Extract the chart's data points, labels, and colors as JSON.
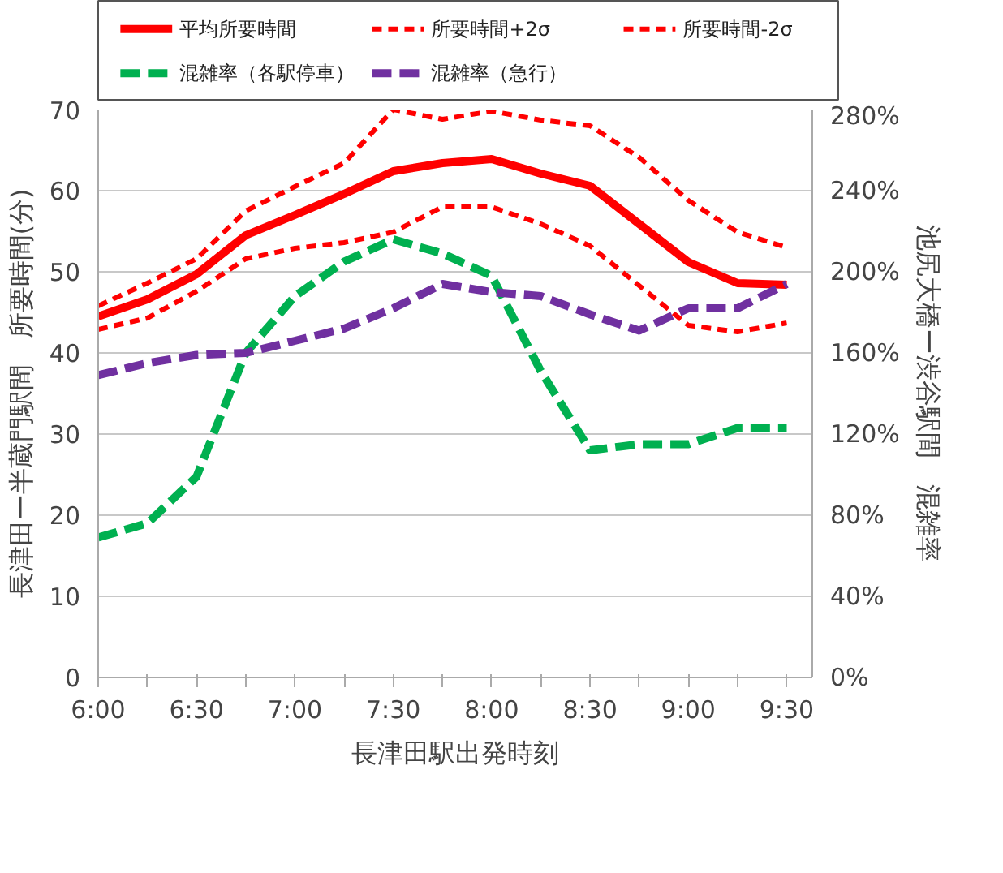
{
  "chart_data": {
    "type": "line",
    "xlabel": "長津田駅出発時刻",
    "ylabel": "長津田ー半蔵門駅間　所要時間(分)",
    "y2label": "池尻大橋ー渋谷駅間　混雑率",
    "x": [
      6,
      6.25,
      6.5,
      6.75,
      7,
      7.25,
      7.5,
      7.75,
      8,
      8.25,
      8.5,
      8.75,
      9,
      9.25,
      9.5
    ],
    "xlim": [
      6,
      9.63
    ],
    "xticks": [
      {
        "value": 6,
        "label": "6:00"
      },
      {
        "value": 6.25,
        "label": null
      },
      {
        "value": 6.5,
        "label": "6:30"
      },
      {
        "value": 6.75,
        "label": null
      },
      {
        "value": 7,
        "label": "7:00"
      },
      {
        "value": 7.25,
        "label": null
      },
      {
        "value": 7.5,
        "label": "7:30"
      },
      {
        "value": 7.75,
        "label": null
      },
      {
        "value": 8,
        "label": "8:00"
      },
      {
        "value": 8.25,
        "label": null
      },
      {
        "value": 8.5,
        "label": "8:30"
      },
      {
        "value": 8.75,
        "label": null
      },
      {
        "value": 9,
        "label": "9:00"
      },
      {
        "value": 9.25,
        "label": null
      },
      {
        "value": 9.5,
        "label": "9:30"
      }
    ],
    "ylim": [
      0,
      70
    ],
    "yticks": [
      0,
      10,
      20,
      30,
      40,
      50,
      60,
      70
    ],
    "y2lim": [
      0,
      280
    ],
    "y2ticks": [
      {
        "value": 0,
        "label": "0%"
      },
      {
        "value": 40,
        "label": "40%"
      },
      {
        "value": 80,
        "label": "80%"
      },
      {
        "value": 120,
        "label": "120%"
      },
      {
        "value": 160,
        "label": "160%"
      },
      {
        "value": 200,
        "label": "200%"
      },
      {
        "value": 240,
        "label": "240%"
      },
      {
        "value": 280,
        "label": "280%"
      }
    ],
    "grid": "y",
    "legend": "top",
    "series": [
      {
        "name": "平均所要時間",
        "color": "#ff0000",
        "line_style": "solid",
        "values": [
          44.5,
          46.6,
          49.7,
          54.5,
          57,
          59.6,
          62.4,
          63.4,
          63.9,
          62.1,
          60.6,
          55.9,
          51.2,
          48.6,
          48.4
        ]
      },
      {
        "name": "所要時間+2σ",
        "color": "#ff0000",
        "line_style": "dashed",
        "values": [
          45.8,
          48.6,
          51.6,
          57.5,
          60.5,
          63.4,
          70,
          68.8,
          69.8,
          68.7,
          68,
          64.1,
          58.8,
          54.9,
          53
        ]
      },
      {
        "name": "所要時間-2σ",
        "color": "#ff0000",
        "line_style": "dashed",
        "values": [
          42.9,
          44.3,
          47.6,
          51.6,
          52.9,
          53.6,
          54.9,
          58,
          58,
          55.9,
          53.2,
          48.3,
          43.4,
          42.6,
          43.7
        ]
      },
      {
        "name": "混雑率（各駅停車）",
        "color": "#00b050",
        "line_style": "dashed",
        "axis": "y2",
        "values": [
          69,
          76,
          99,
          160,
          188,
          205,
          216,
          209,
          198,
          151,
          112,
          115,
          115,
          123,
          123
        ]
      },
      {
        "name": "混雑率（急行）",
        "color": "#7030a0",
        "line_style": "dashed",
        "axis": "y2",
        "values": [
          149,
          155,
          159,
          160,
          166,
          172,
          182,
          194,
          190,
          188,
          179,
          171,
          182,
          182,
          194
        ]
      }
    ]
  }
}
